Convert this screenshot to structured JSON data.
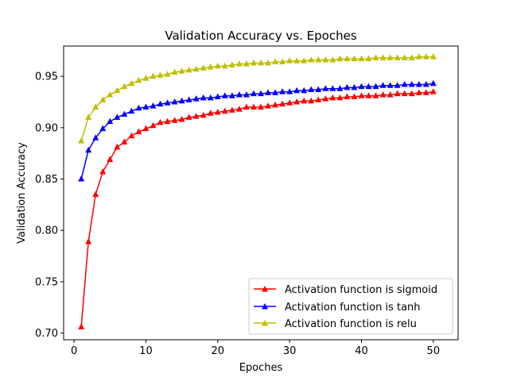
{
  "chart_data": {
    "type": "line",
    "title": "Validation Accuracy vs. Epoches",
    "xlabel": "Epoches",
    "ylabel": "Validation Accuracy",
    "xlim": [
      -1.45,
      53.45
    ],
    "ylim": [
      0.6935,
      0.9795
    ],
    "xticks": [
      0,
      10,
      20,
      30,
      40,
      50
    ],
    "yticks": [
      0.7,
      0.75,
      0.8,
      0.85,
      0.9,
      0.95
    ],
    "grid": false,
    "legend_position": "lower-right",
    "x": [
      1,
      2,
      3,
      4,
      5,
      6,
      7,
      8,
      9,
      10,
      11,
      12,
      13,
      14,
      15,
      16,
      17,
      18,
      19,
      20,
      21,
      22,
      23,
      24,
      25,
      26,
      27,
      28,
      29,
      30,
      31,
      32,
      33,
      34,
      35,
      36,
      37,
      38,
      39,
      40,
      41,
      42,
      43,
      44,
      45,
      46,
      47,
      48,
      49,
      50
    ],
    "series": [
      {
        "name": "Activation function is sigmoid",
        "color": "#ff0000",
        "values": [
          0.706,
          0.789,
          0.835,
          0.857,
          0.869,
          0.881,
          0.886,
          0.892,
          0.896,
          0.899,
          0.902,
          0.905,
          0.906,
          0.907,
          0.908,
          0.91,
          0.911,
          0.912,
          0.914,
          0.915,
          0.916,
          0.917,
          0.918,
          0.92,
          0.92,
          0.92,
          0.921,
          0.922,
          0.923,
          0.924,
          0.925,
          0.926,
          0.926,
          0.927,
          0.928,
          0.929,
          0.929,
          0.93,
          0.93,
          0.931,
          0.931,
          0.931,
          0.932,
          0.932,
          0.933,
          0.933,
          0.933,
          0.934,
          0.934,
          0.935
        ]
      },
      {
        "name": "Activation function is tanh",
        "color": "#0000ff",
        "values": [
          0.85,
          0.878,
          0.89,
          0.899,
          0.906,
          0.91,
          0.913,
          0.916,
          0.919,
          0.92,
          0.921,
          0.923,
          0.924,
          0.925,
          0.926,
          0.927,
          0.928,
          0.929,
          0.929,
          0.93,
          0.931,
          0.931,
          0.932,
          0.932,
          0.933,
          0.933,
          0.934,
          0.934,
          0.935,
          0.935,
          0.936,
          0.936,
          0.937,
          0.937,
          0.938,
          0.938,
          0.938,
          0.939,
          0.939,
          0.94,
          0.94,
          0.94,
          0.941,
          0.941,
          0.941,
          0.942,
          0.942,
          0.942,
          0.942,
          0.943
        ]
      },
      {
        "name": "Activation function is relu",
        "color": "#bfbf00",
        "values": [
          0.887,
          0.91,
          0.92,
          0.927,
          0.932,
          0.936,
          0.94,
          0.943,
          0.946,
          0.948,
          0.95,
          0.951,
          0.952,
          0.954,
          0.955,
          0.956,
          0.957,
          0.958,
          0.959,
          0.96,
          0.96,
          0.961,
          0.962,
          0.962,
          0.963,
          0.963,
          0.963,
          0.964,
          0.964,
          0.965,
          0.965,
          0.965,
          0.966,
          0.966,
          0.966,
          0.966,
          0.967,
          0.967,
          0.967,
          0.967,
          0.967,
          0.968,
          0.968,
          0.968,
          0.968,
          0.968,
          0.968,
          0.969,
          0.969,
          0.969
        ]
      }
    ]
  }
}
